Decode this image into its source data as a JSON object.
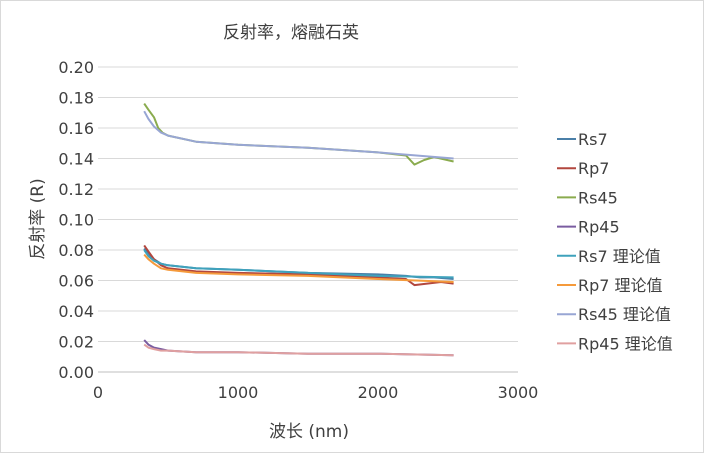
{
  "chart_data": {
    "type": "line",
    "title": "反射率，熔融石英",
    "xlabel": "波长 (nm)",
    "ylabel": "反射率 (R)",
    "xlim": [
      0,
      3000
    ],
    "ylim": [
      0,
      0.2
    ],
    "x_ticks": [
      "0",
      "1000",
      "2000",
      "3000"
    ],
    "y_ticks": [
      "0.00",
      "0.02",
      "0.04",
      "0.06",
      "0.08",
      "0.10",
      "0.12",
      "0.14",
      "0.16",
      "0.18",
      "0.20"
    ],
    "grid": "horizontal",
    "legend_position": "right",
    "series": [
      {
        "name": "Rs7",
        "color": "#4a7fa8",
        "x": [
          330,
          360,
          400,
          450,
          500,
          700,
          1000,
          1500,
          2000,
          2200,
          2300,
          2400,
          2540
        ],
        "y": [
          0.081,
          0.077,
          0.074,
          0.071,
          0.07,
          0.068,
          0.067,
          0.065,
          0.064,
          0.063,
          0.062,
          0.062,
          0.061
        ]
      },
      {
        "name": "Rp7",
        "color": "#b2473e",
        "x": [
          330,
          360,
          400,
          450,
          500,
          700,
          1000,
          1500,
          2000,
          2200,
          2260,
          2350,
          2450,
          2540
        ],
        "y": [
          0.083,
          0.079,
          0.074,
          0.07,
          0.068,
          0.066,
          0.065,
          0.064,
          0.062,
          0.061,
          0.057,
          0.058,
          0.059,
          0.058
        ]
      },
      {
        "name": "Rs45",
        "color": "#8aab4e",
        "x": [
          330,
          360,
          400,
          430,
          460,
          500,
          700,
          1000,
          1500,
          2000,
          2200,
          2260,
          2330,
          2400,
          2540
        ],
        "y": [
          0.176,
          0.172,
          0.167,
          0.16,
          0.157,
          0.155,
          0.151,
          0.149,
          0.147,
          0.144,
          0.142,
          0.136,
          0.139,
          0.141,
          0.138
        ]
      },
      {
        "name": "Rp45",
        "color": "#7a5ca0",
        "x": [
          330,
          360,
          400,
          450,
          500,
          700,
          1000,
          1500,
          2000,
          2540
        ],
        "y": [
          0.021,
          0.018,
          0.016,
          0.015,
          0.014,
          0.013,
          0.013,
          0.012,
          0.012,
          0.011
        ]
      },
      {
        "name": "Rs7 理论值",
        "color": "#3fa2bc",
        "x": [
          330,
          360,
          400,
          450,
          500,
          700,
          1000,
          1500,
          2000,
          2540
        ],
        "y": [
          0.08,
          0.076,
          0.073,
          0.071,
          0.07,
          0.068,
          0.067,
          0.065,
          0.063,
          0.062
        ]
      },
      {
        "name": "Rp7 理论值",
        "color": "#f59a3b",
        "x": [
          330,
          360,
          400,
          450,
          500,
          700,
          1000,
          1500,
          2000,
          2540
        ],
        "y": [
          0.077,
          0.074,
          0.071,
          0.068,
          0.067,
          0.065,
          0.064,
          0.063,
          0.061,
          0.059
        ]
      },
      {
        "name": "Rs45 理论值",
        "color": "#98a6d4",
        "x": [
          330,
          360,
          400,
          450,
          500,
          700,
          1000,
          1500,
          2000,
          2540
        ],
        "y": [
          0.171,
          0.166,
          0.161,
          0.157,
          0.155,
          0.151,
          0.149,
          0.147,
          0.144,
          0.14
        ]
      },
      {
        "name": "Rp45 理论值",
        "color": "#e0a0a0",
        "x": [
          330,
          360,
          400,
          450,
          500,
          700,
          1000,
          1500,
          2000,
          2540
        ],
        "y": [
          0.018,
          0.016,
          0.015,
          0.014,
          0.014,
          0.013,
          0.013,
          0.012,
          0.012,
          0.011
        ]
      }
    ]
  }
}
